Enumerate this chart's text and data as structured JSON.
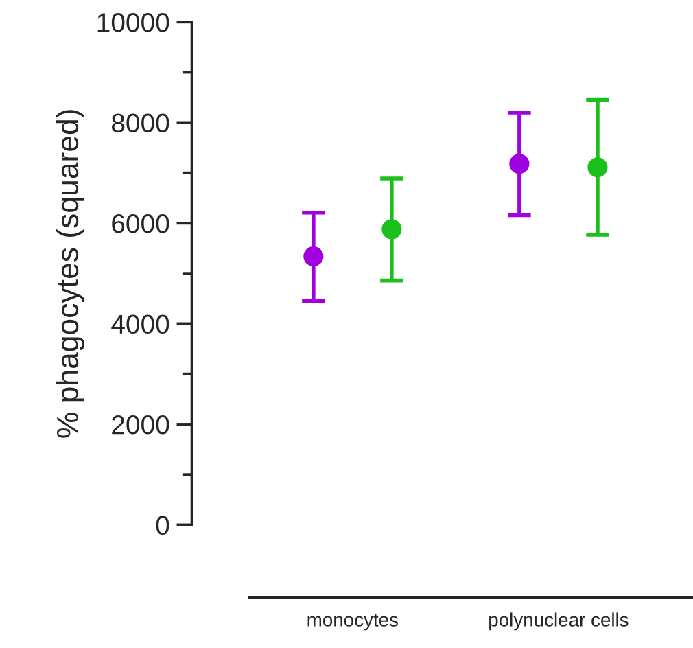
{
  "chart_data": {
    "type": "scatter",
    "ylabel": "% phagocytes (squared)",
    "categories": [
      "monocytes",
      "polynuclear cells"
    ],
    "series": [
      {
        "color": "#a000e0",
        "values": [
          5340,
          7180
        ],
        "errors": [
          [
            4450,
            6210
          ],
          [
            6160,
            8200
          ]
        ]
      },
      {
        "color": "#1cc01c",
        "values": [
          5880,
          7110
        ],
        "errors": [
          [
            4860,
            6890
          ],
          [
            5770,
            8450
          ]
        ]
      }
    ],
    "ylim": [
      0,
      10000
    ],
    "yticks": [
      0,
      2000,
      4000,
      6000,
      8000,
      10000
    ],
    "marker": "circle"
  }
}
